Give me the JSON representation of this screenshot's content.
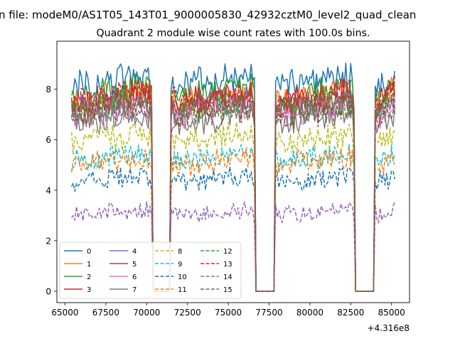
{
  "chart_data": {
    "type": "line",
    "suptitle": "n file: modeM0/AS1T05_143T01_9000005830_42932cztM0_level2_quad_clean",
    "title": "Quadrant 2 module wise count rates with 100.0s bins.",
    "xlabel": "",
    "ylabel": "",
    "x_offset_label": "+4.316e8",
    "xlim": [
      64500,
      86100
    ],
    "ylim": [
      -0.45,
      9.9
    ],
    "x_ticks": [
      65000,
      67500,
      70000,
      72500,
      75000,
      77500,
      80000,
      82500,
      85000
    ],
    "x_tick_labels": [
      "65000",
      "67500",
      "70000",
      "72500",
      "75000",
      "77500",
      "80000",
      "82500",
      "85000"
    ],
    "y_ticks": [
      0,
      2,
      4,
      6,
      8
    ],
    "y_tick_labels": [
      "0",
      "2",
      "4",
      "6",
      "8"
    ],
    "grid": false,
    "legend_position": "lower-left",
    "legend_columns": 4,
    "x_start": 65400,
    "x_step": 100,
    "n_points": 199,
    "gaps": [
      [
        70300,
        71500
      ],
      [
        76600,
        77900
      ],
      [
        82700,
        84000
      ]
    ],
    "series": [
      {
        "name": "0",
        "color": "#1f77b4",
        "dash": "solid",
        "level": 8.25
      },
      {
        "name": "1",
        "color": "#ff7f0e",
        "dash": "solid",
        "level": 7.6
      },
      {
        "name": "2",
        "color": "#2ca02c",
        "dash": "solid",
        "level": 7.75
      },
      {
        "name": "3",
        "color": "#d62728",
        "dash": "solid",
        "level": 7.5
      },
      {
        "name": "4",
        "color": "#9467bd",
        "dash": "solid",
        "level": 7.25
      },
      {
        "name": "5",
        "color": "#8c564b",
        "dash": "solid",
        "level": 7.35
      },
      {
        "name": "6",
        "color": "#e377c2",
        "dash": "solid",
        "level": 7.0
      },
      {
        "name": "7",
        "color": "#7f7f7f",
        "dash": "solid",
        "level": 6.75
      },
      {
        "name": "8",
        "color": "#bcbd22",
        "dash": "dashed",
        "level": 6.0
      },
      {
        "name": "9",
        "color": "#17becf",
        "dash": "dashed",
        "level": 5.25
      },
      {
        "name": "10",
        "color": "#1f77b4",
        "dash": "dashed",
        "level": 4.4
      },
      {
        "name": "11",
        "color": "#ff7f0e",
        "dash": "dashed",
        "level": 5.1
      },
      {
        "name": "12",
        "color": "#2ca02c",
        "dash": "dashed",
        "level": 7.2
      },
      {
        "name": "13",
        "color": "#d62728",
        "dash": "dashed",
        "level": 7.6
      },
      {
        "name": "14",
        "color": "#9467bd",
        "dash": "dashed",
        "level": 3.1
      },
      {
        "name": "15",
        "color": "#8c564b",
        "dash": "dashed",
        "level": 7.0
      }
    ]
  }
}
